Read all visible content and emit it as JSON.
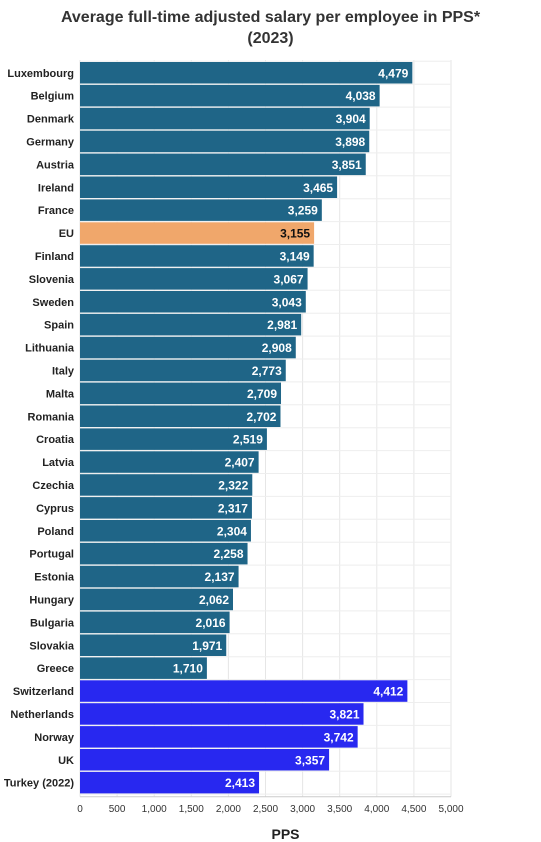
{
  "chart_data": {
    "type": "bar",
    "orientation": "horizontal",
    "title_line1": "Average full-time adjusted salary per employee in PPS*",
    "title_line2": "(2023)",
    "xlabel": "PPS",
    "ylabel": "",
    "xlim": [
      0,
      5000
    ],
    "xticks": [
      0,
      500,
      1000,
      1500,
      2000,
      2500,
      3000,
      3500,
      4000,
      4500,
      5000
    ],
    "xtick_labels": [
      "0",
      "500",
      "1,000",
      "1,500",
      "2,000",
      "2,500",
      "3,000",
      "3,500",
      "4,000",
      "4,500",
      "5,000"
    ],
    "grid": true,
    "colors": {
      "eu_member": "#1f6587",
      "eu_average": "#f0a76b",
      "non_eu": "#2828f0"
    },
    "bars": [
      {
        "category": "Luxembourg",
        "value": 4479,
        "label": "4,479",
        "group": "eu_member"
      },
      {
        "category": "Belgium",
        "value": 4038,
        "label": "4,038",
        "group": "eu_member"
      },
      {
        "category": "Denmark",
        "value": 3904,
        "label": "3,904",
        "group": "eu_member"
      },
      {
        "category": "Germany",
        "value": 3898,
        "label": "3,898",
        "group": "eu_member"
      },
      {
        "category": "Austria",
        "value": 3851,
        "label": "3,851",
        "group": "eu_member"
      },
      {
        "category": "Ireland",
        "value": 3465,
        "label": "3,465",
        "group": "eu_member"
      },
      {
        "category": "France",
        "value": 3259,
        "label": "3,259",
        "group": "eu_member"
      },
      {
        "category": "EU",
        "value": 3155,
        "label": "3,155",
        "group": "eu_average"
      },
      {
        "category": "Finland",
        "value": 3149,
        "label": "3,149",
        "group": "eu_member"
      },
      {
        "category": "Slovenia",
        "value": 3067,
        "label": "3,067",
        "group": "eu_member"
      },
      {
        "category": "Sweden",
        "value": 3043,
        "label": "3,043",
        "group": "eu_member"
      },
      {
        "category": "Spain",
        "value": 2981,
        "label": "2,981",
        "group": "eu_member"
      },
      {
        "category": "Lithuania",
        "value": 2908,
        "label": "2,908",
        "group": "eu_member"
      },
      {
        "category": "Italy",
        "value": 2773,
        "label": "2,773",
        "group": "eu_member"
      },
      {
        "category": "Malta",
        "value": 2709,
        "label": "2,709",
        "group": "eu_member"
      },
      {
        "category": "Romania",
        "value": 2702,
        "label": "2,702",
        "group": "eu_member"
      },
      {
        "category": "Croatia",
        "value": 2519,
        "label": "2,519",
        "group": "eu_member"
      },
      {
        "category": "Latvia",
        "value": 2407,
        "label": "2,407",
        "group": "eu_member"
      },
      {
        "category": "Czechia",
        "value": 2322,
        "label": "2,322",
        "group": "eu_member"
      },
      {
        "category": "Cyprus",
        "value": 2317,
        "label": "2,317",
        "group": "eu_member"
      },
      {
        "category": "Poland",
        "value": 2304,
        "label": "2,304",
        "group": "eu_member"
      },
      {
        "category": "Portugal",
        "value": 2258,
        "label": "2,258",
        "group": "eu_member"
      },
      {
        "category": "Estonia",
        "value": 2137,
        "label": "2,137",
        "group": "eu_member"
      },
      {
        "category": "Hungary",
        "value": 2062,
        "label": "2,062",
        "group": "eu_member"
      },
      {
        "category": "Bulgaria",
        "value": 2016,
        "label": "2,016",
        "group": "eu_member"
      },
      {
        "category": "Slovakia",
        "value": 1971,
        "label": "1,971",
        "group": "eu_member"
      },
      {
        "category": "Greece",
        "value": 1710,
        "label": "1,710",
        "group": "eu_member"
      },
      {
        "category": "Switzerland",
        "value": 4412,
        "label": "4,412",
        "group": "non_eu"
      },
      {
        "category": "Netherlands",
        "value": 3821,
        "label": "3,821",
        "group": "non_eu"
      },
      {
        "category": "Norway",
        "value": 3742,
        "label": "3,742",
        "group": "non_eu"
      },
      {
        "category": "UK",
        "value": 3357,
        "label": "3,357",
        "group": "non_eu"
      },
      {
        "category": "Turkey (2022)",
        "value": 2413,
        "label": "2,413",
        "group": "non_eu"
      }
    ]
  }
}
